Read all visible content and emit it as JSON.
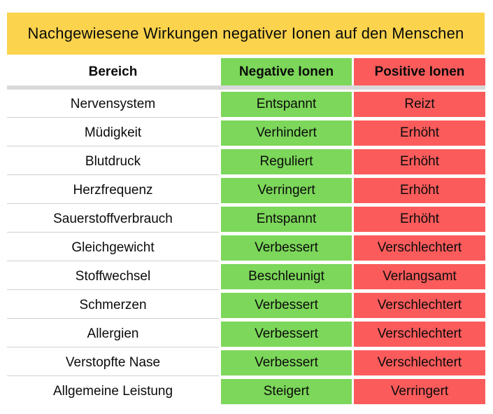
{
  "chart_data": {
    "type": "table",
    "title": "Nachgewiesene Wirkungen negativer Ionen auf den Menschen",
    "columns": [
      "Bereich",
      "Negative Ionen",
      "Positive Ionen"
    ],
    "rows": [
      {
        "bereich": "Nervensystem",
        "negative": "Entspannt",
        "positive": "Reizt"
      },
      {
        "bereich": "Müdigkeit",
        "negative": "Verhindert",
        "positive": "Erhöht"
      },
      {
        "bereich": "Blutdruck",
        "negative": "Reguliert",
        "positive": "Erhöht"
      },
      {
        "bereich": "Herzfrequenz",
        "negative": "Verringert",
        "positive": "Erhöht"
      },
      {
        "bereich": "Sauerstoffverbrauch",
        "negative": "Entspannt",
        "positive": "Erhöht"
      },
      {
        "bereich": "Gleichgewicht",
        "negative": "Verbessert",
        "positive": "Verschlechtert"
      },
      {
        "bereich": "Stoffwechsel",
        "negative": "Beschleunigt",
        "positive": "Verlangsamt"
      },
      {
        "bereich": "Schmerzen",
        "negative": "Verbessert",
        "positive": "Verschlechtert"
      },
      {
        "bereich": "Allergien",
        "negative": "Verbessert",
        "positive": "Verschlechtert"
      },
      {
        "bereich": "Verstopfte Nase",
        "negative": "Verbessert",
        "positive": "Verschlechtert"
      },
      {
        "bereich": "Allgemeine Leistung",
        "negative": "Steigert",
        "positive": "Verringert"
      }
    ],
    "layout": {
      "legend": "none",
      "grid": "row-separators"
    }
  },
  "colors": {
    "banner": "#FBD34D",
    "negative": "#7CD75A",
    "positive": "#FB5B5B",
    "divider": "#D9D9D9",
    "rowline": "#D0D0D0"
  }
}
